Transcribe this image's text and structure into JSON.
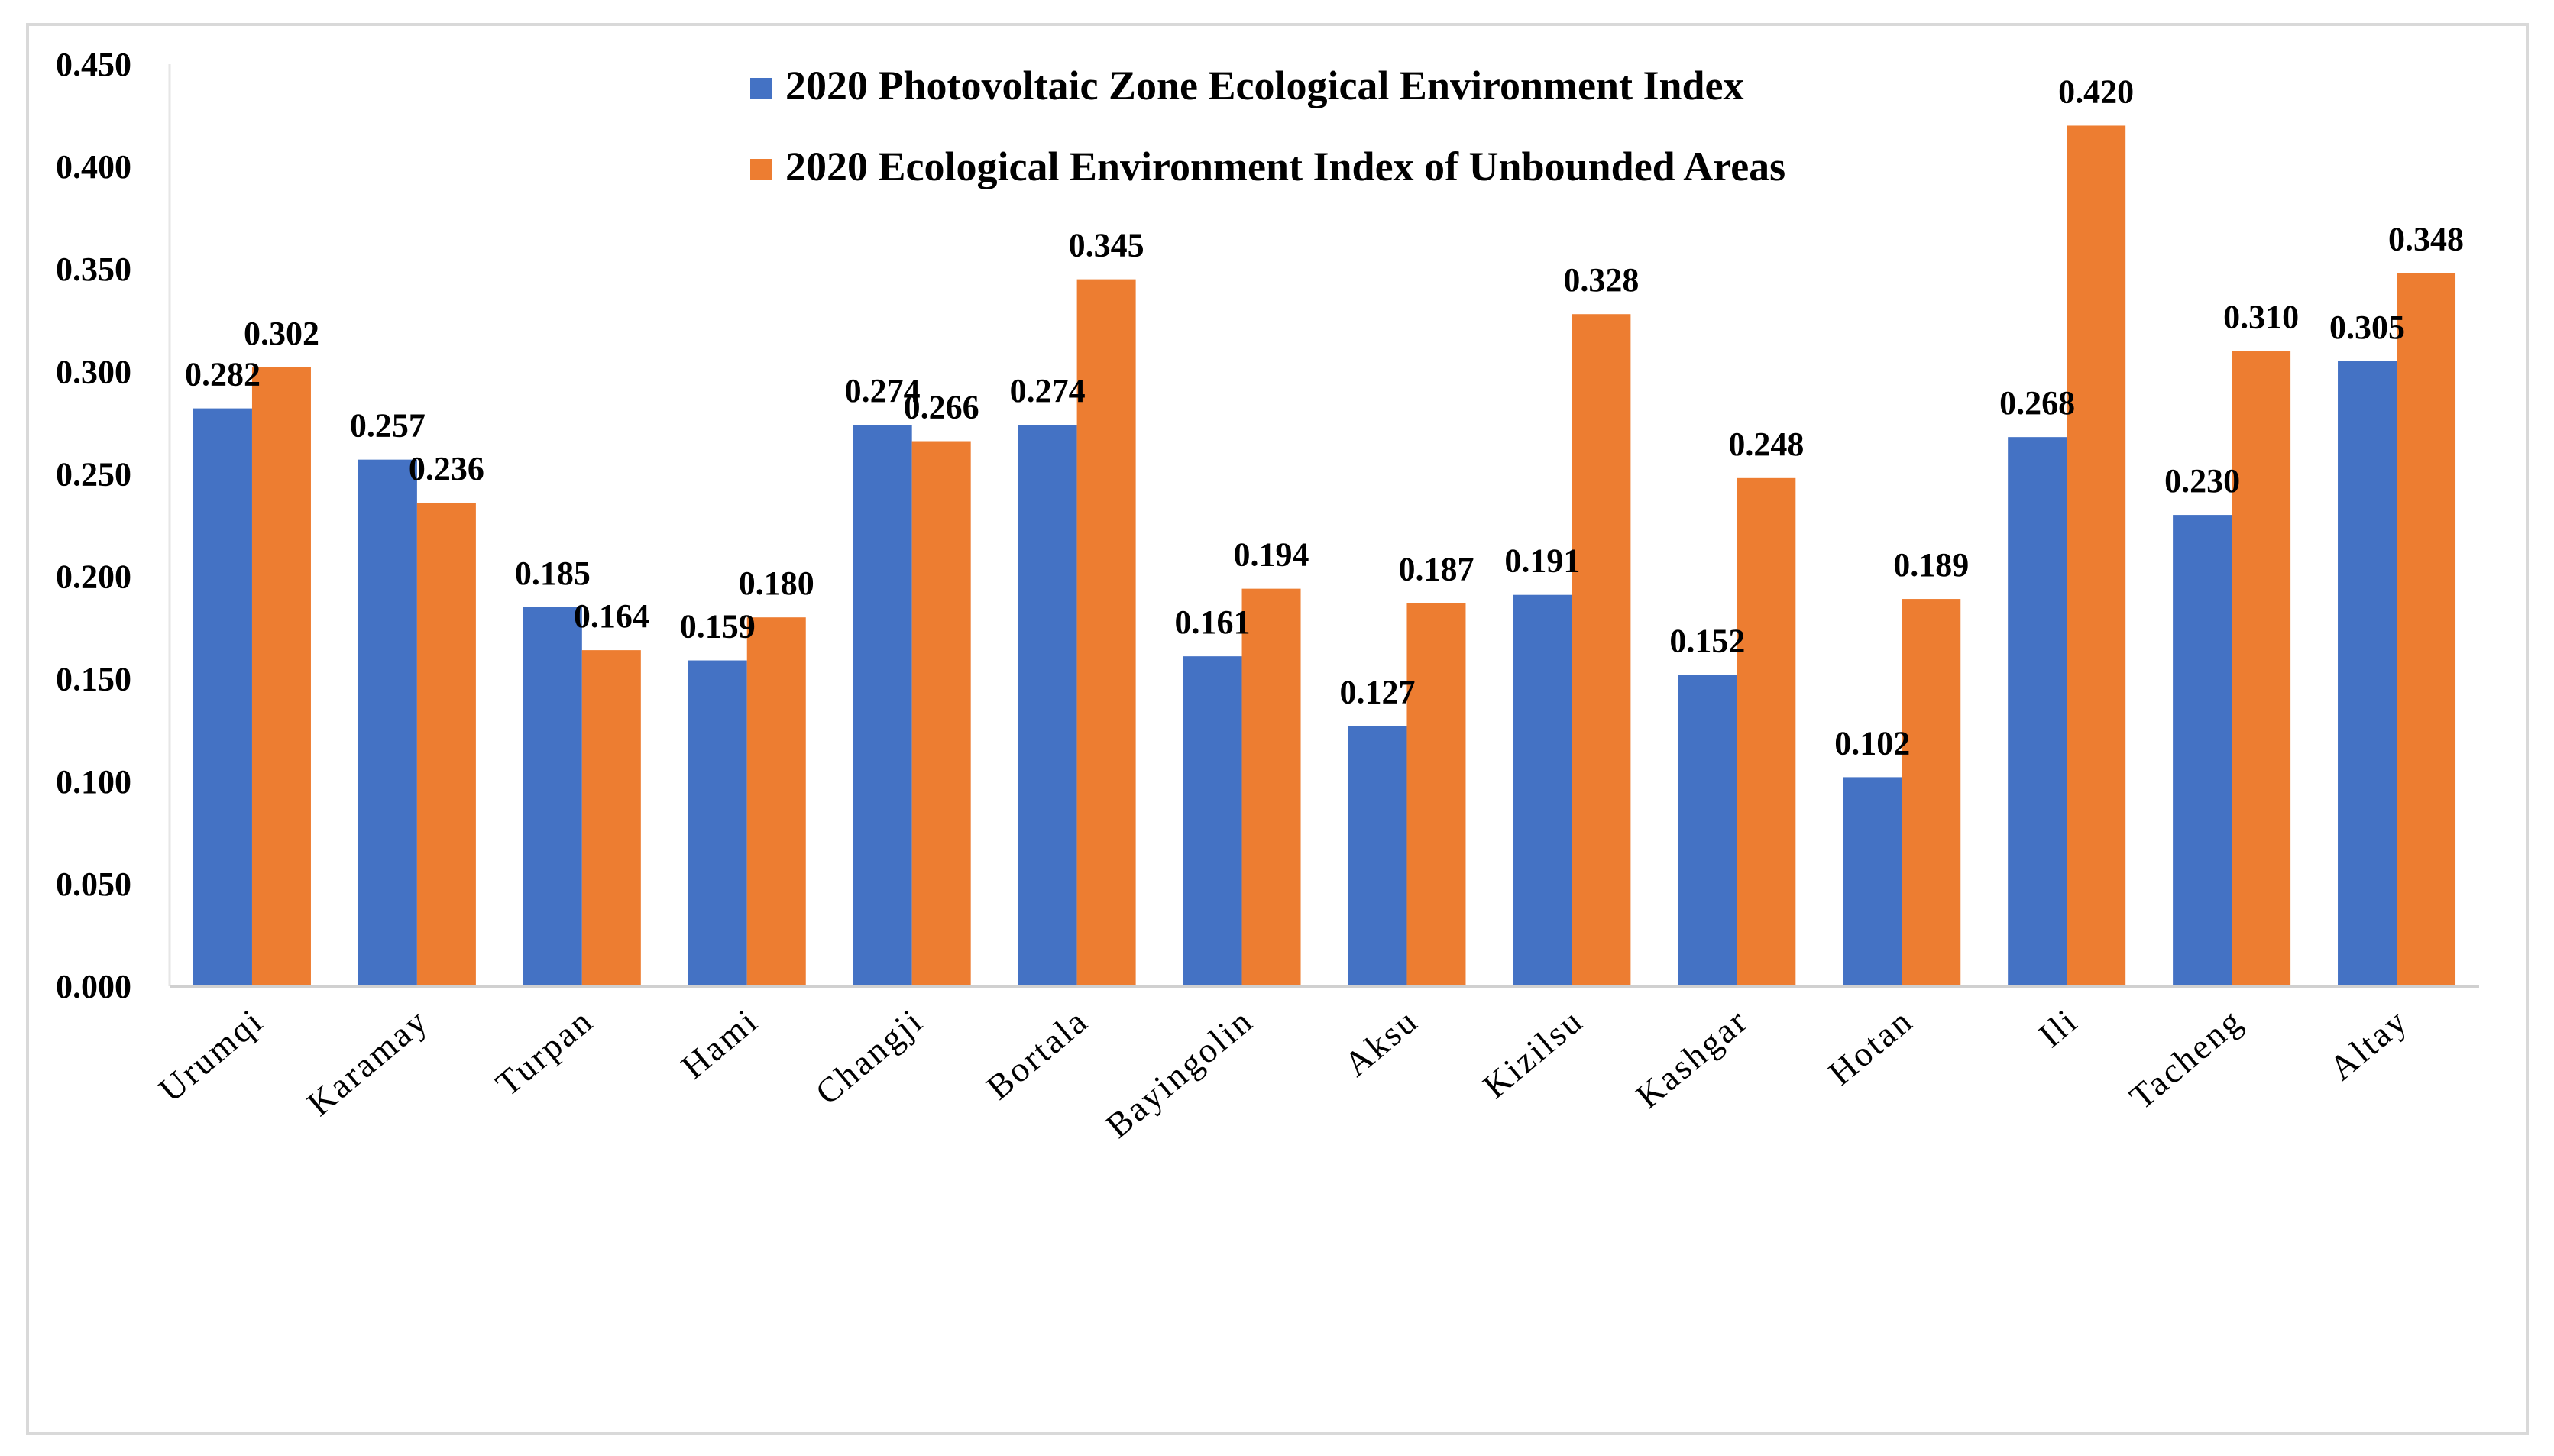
{
  "chart_data": {
    "type": "bar",
    "title": "",
    "xlabel": "",
    "ylabel": "",
    "ylim": [
      0,
      0.45
    ],
    "yticks": [
      "0.000",
      "0.050",
      "0.100",
      "0.150",
      "0.200",
      "0.250",
      "0.300",
      "0.350",
      "0.400",
      "0.450"
    ],
    "grid": false,
    "legend_position": "top-center",
    "categories": [
      "Urumqi",
      "Karamay",
      "Turpan",
      "Hami",
      "Changji",
      "Bortala",
      "Bayingolin",
      "Aksu",
      "Kizilsu",
      "Kashgar",
      "Hotan",
      "Ili",
      "Tacheng",
      "Altay"
    ],
    "series": [
      {
        "name": "2020 Photovoltaic Zone Ecological Environment Index",
        "color": "#4472c4",
        "values": [
          0.282,
          0.257,
          0.185,
          0.159,
          0.274,
          0.274,
          0.161,
          0.127,
          0.191,
          0.152,
          0.102,
          0.268,
          0.23,
          0.305
        ],
        "labels": [
          "0.282",
          "0.257",
          "0.185",
          "0.159",
          "0.274",
          "0.274",
          "0.161",
          "0.127",
          "0.191",
          "0.152",
          "0.102",
          "0.268",
          "0.230",
          "0.305"
        ]
      },
      {
        "name": "2020 Ecological Environment Index of Unbounded Areas",
        "color": "#ed7d31",
        "values": [
          0.302,
          0.236,
          0.164,
          0.18,
          0.266,
          0.345,
          0.194,
          0.187,
          0.328,
          0.248,
          0.189,
          0.42,
          0.31,
          0.348
        ],
        "labels": [
          "0.302",
          "0.236",
          "0.164",
          "0.180",
          "0.266",
          "0.345",
          "0.194",
          "0.187",
          "0.328",
          "0.248",
          "0.189",
          "0.420",
          "0.310",
          "0.348"
        ]
      }
    ]
  }
}
